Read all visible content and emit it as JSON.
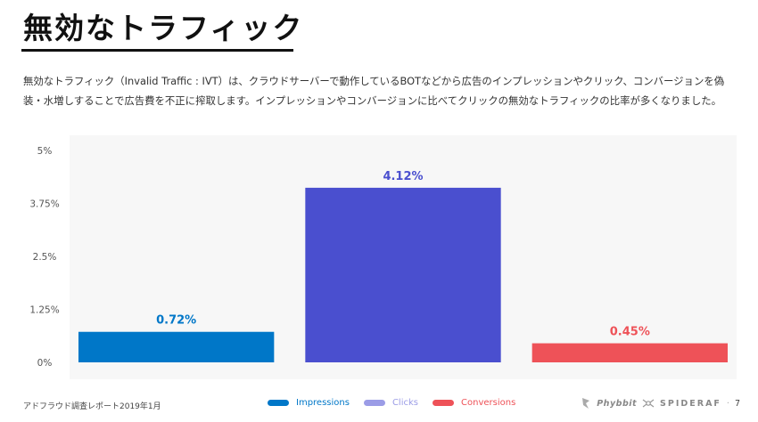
{
  "title": "無効なトラフィック",
  "description": "無効なトラフィック（Invalid Traffic : IVT）は、クラウドサーバーで動作しているBOTなどから広告のインプレッションやクリック、コンバージョンを偽装・水増しすることで広告費を不正に搾取します。インプレッションやコンバージョンに比べてクリックの無効なトラフィックの比率が多くなりました。",
  "footer": {
    "report": "アドフラウド調査レポート2019年1月",
    "logo1": "Phybbit",
    "logo2": "SPIDERAF",
    "separator": "·",
    "page": "7"
  },
  "icons": [
    "phybbit-logo-icon",
    "spideraf-logo-icon"
  ],
  "colors": {
    "impressions": "#0077c8",
    "clicks": "#4a4fcf",
    "clicks_legend": "#9b9ce6",
    "conversions": "#ee5258",
    "plot_bg": "#f7f7f7"
  },
  "chart_data": {
    "type": "bar",
    "categories": [
      "Impressions",
      "Clicks",
      "Conversions"
    ],
    "values": [
      0.72,
      4.12,
      0.45
    ],
    "data_labels": [
      "0.72%",
      "4.12%",
      "0.45%"
    ],
    "yticks": [
      "0%",
      "1.25%",
      "2.5%",
      "3.75%",
      "5%"
    ],
    "ytick_values": [
      0,
      1.25,
      2.5,
      3.75,
      5
    ],
    "ylim": [
      0,
      5
    ],
    "legend": [
      "Impressions",
      "Clicks",
      "Conversions"
    ],
    "legend_position": "bottom",
    "grid": false
  }
}
